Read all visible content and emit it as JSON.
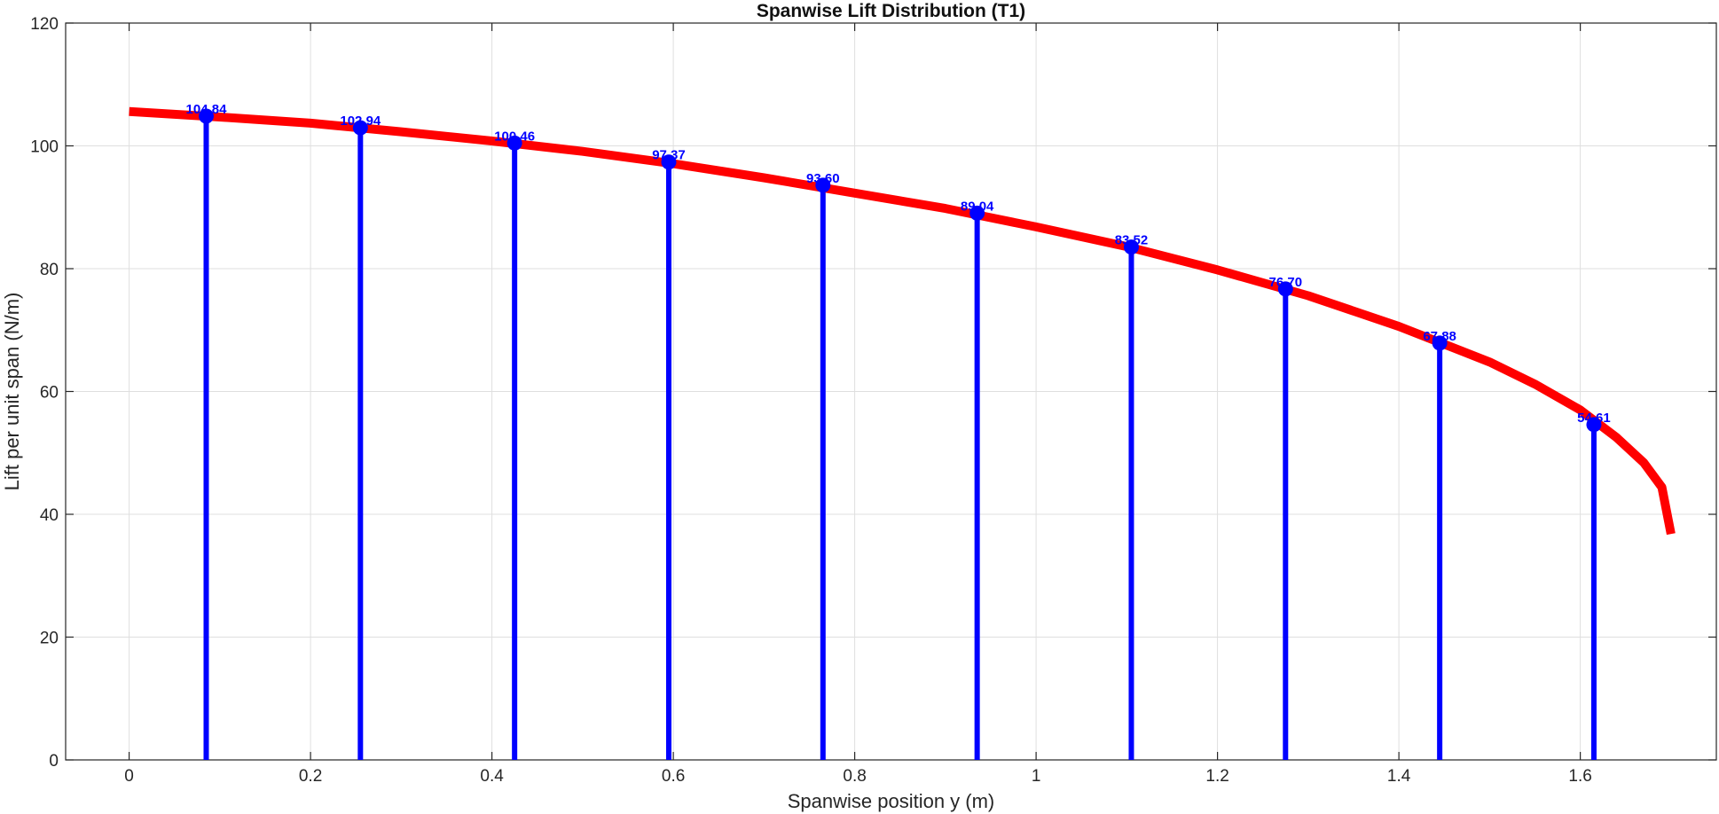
{
  "colors": {
    "curve": "#ff0000",
    "stems": "#0000ff",
    "markers": "#0000ff",
    "data_labels": "#0000ff",
    "grid": "#dfdfdf",
    "axes": "#262626",
    "background": "#ffffff"
  },
  "chart_data": {
    "type": "line",
    "title": "Spanwise Lift Distribution (T1)",
    "xlabel": "Spanwise position y (m)",
    "ylabel": "Lift per unit span (N/m)",
    "xlim": [
      -0.07,
      1.75
    ],
    "ylim": [
      0,
      120
    ],
    "xticks": [
      0,
      0.2,
      0.4,
      0.6,
      0.8,
      1.0,
      1.2,
      1.4,
      1.6
    ],
    "xtick_labels": [
      "0",
      "0.2",
      "0.4",
      "0.6",
      "0.8",
      "1",
      "1.2",
      "1.4",
      "1.6"
    ],
    "yticks": [
      0,
      20,
      40,
      60,
      80,
      100,
      120
    ],
    "ytick_labels": [
      "0",
      "20",
      "40",
      "60",
      "80",
      "100",
      "120"
    ],
    "grid": true,
    "series": [
      {
        "kind": "line",
        "x": [
          0,
          0.1,
          0.2,
          0.3,
          0.4,
          0.5,
          0.6,
          0.7,
          0.8,
          0.9,
          1.0,
          1.1,
          1.2,
          1.3,
          1.4,
          1.5,
          1.55,
          1.6,
          1.64,
          1.67,
          1.69,
          1.7
        ],
        "y": [
          105.6,
          104.7,
          103.7,
          102.3,
          100.8,
          99.1,
          97.1,
          94.8,
          92.3,
          89.8,
          86.8,
          83.6,
          79.8,
          75.6,
          70.6,
          64.8,
          61.2,
          57.0,
          52.5,
          48.4,
          44.4,
          36.8
        ]
      },
      {
        "kind": "stem",
        "x": [
          0.085,
          0.255,
          0.425,
          0.595,
          0.765,
          0.935,
          1.105,
          1.275,
          1.445,
          1.615
        ],
        "y": [
          104.84,
          102.94,
          100.46,
          97.37,
          93.6,
          89.04,
          83.52,
          76.7,
          67.88,
          54.61
        ],
        "labels": [
          "104.84",
          "102.94",
          "100.46",
          "97.37",
          "93.60",
          "89.04",
          "83.52",
          "76.70",
          "67.88",
          "54.61"
        ]
      }
    ]
  }
}
